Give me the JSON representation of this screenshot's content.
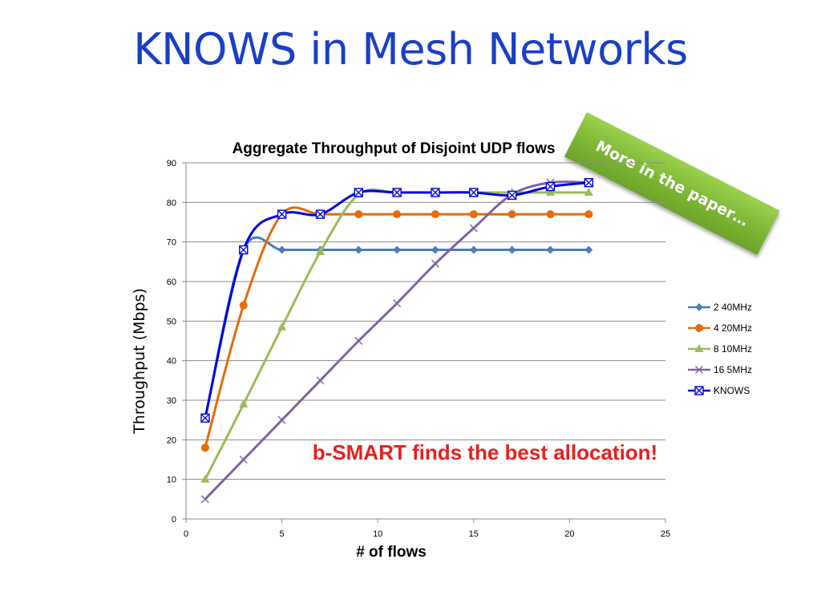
{
  "slide": {
    "title": "KNOWS in Mesh Networks",
    "sticker_text": "More in the paper…",
    "callout": "b-SMART finds the best allocation!",
    "colors": {
      "title": "#1a3fc7",
      "callout": "#e8201e",
      "sticker": "#7db634"
    }
  },
  "chart_data": {
    "type": "line",
    "title": "Aggregate Throughput of Disjoint UDP flows",
    "xlabel": "# of flows",
    "ylabel": "Throughput (Mbps)",
    "xlim": [
      0,
      25
    ],
    "ylim": [
      0,
      90
    ],
    "xticks": [
      0,
      5,
      10,
      15,
      20,
      25
    ],
    "yticks": [
      0,
      10,
      20,
      30,
      40,
      50,
      60,
      70,
      80,
      90
    ],
    "grid": "horizontal",
    "legend_position": "right",
    "x": [
      1,
      3,
      5,
      7,
      9,
      11,
      13,
      15,
      17,
      19,
      21
    ],
    "series": [
      {
        "name": "2 40MHz",
        "color": "#4a7ebb",
        "marker": "diamond",
        "values": [
          25.5,
          68,
          68,
          68,
          68,
          68,
          68,
          68,
          68,
          68,
          68
        ]
      },
      {
        "name": "4 20MHz",
        "color": "#e46c0a",
        "marker": "circle",
        "values": [
          18,
          54,
          77,
          77,
          77,
          77,
          77,
          77,
          77,
          77,
          77
        ]
      },
      {
        "name": "8 10MHz",
        "color": "#9bbb59",
        "marker": "triangle",
        "values": [
          10,
          29,
          48.5,
          67.5,
          82,
          82.5,
          82.5,
          82.5,
          82.5,
          82.5,
          82.5
        ]
      },
      {
        "name": "16 5MHz",
        "color": "#8064a2",
        "marker": "x",
        "values": [
          5,
          15,
          25,
          35,
          45,
          54.5,
          64.5,
          73.5,
          82,
          85,
          85
        ]
      },
      {
        "name": "KNOWS",
        "color": "#0000e6",
        "marker": "square-x",
        "values": [
          25.5,
          68,
          77,
          77,
          82.5,
          82.5,
          82.5,
          82.5,
          81.8,
          84,
          85
        ]
      }
    ]
  }
}
